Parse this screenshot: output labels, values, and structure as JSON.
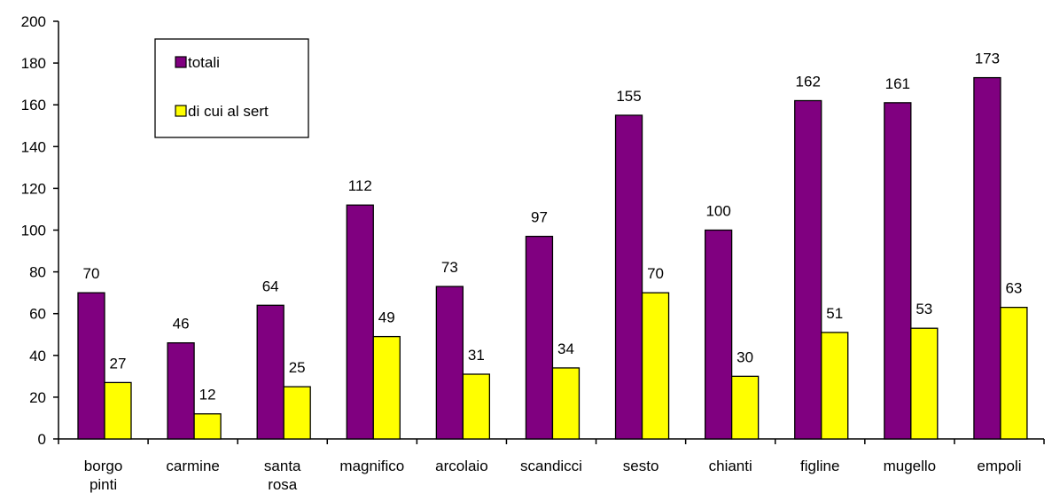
{
  "chart_data": {
    "type": "bar",
    "categories": [
      [
        "borgo",
        "pinti"
      ],
      [
        "carmine"
      ],
      [
        "santa",
        "rosa"
      ],
      [
        "magnifico"
      ],
      [
        "arcolaio"
      ],
      [
        "scandicci"
      ],
      [
        "sesto"
      ],
      [
        "chianti"
      ],
      [
        "figline"
      ],
      [
        "mugello"
      ],
      [
        "empoli"
      ]
    ],
    "series": [
      {
        "name": "totali",
        "color": "#800080",
        "values": [
          70,
          46,
          64,
          112,
          73,
          97,
          155,
          100,
          162,
          161,
          173
        ]
      },
      {
        "name": "di cui al sert",
        "color": "#ffff00",
        "values": [
          27,
          12,
          25,
          49,
          31,
          34,
          70,
          30,
          51,
          53,
          63
        ]
      }
    ],
    "ylim": [
      0,
      200
    ],
    "yticks": [
      0,
      20,
      40,
      60,
      80,
      100,
      120,
      140,
      160,
      180,
      200
    ],
    "grid": false,
    "legend_position": "top-left",
    "title": "",
    "xlabel": "",
    "ylabel": ""
  }
}
